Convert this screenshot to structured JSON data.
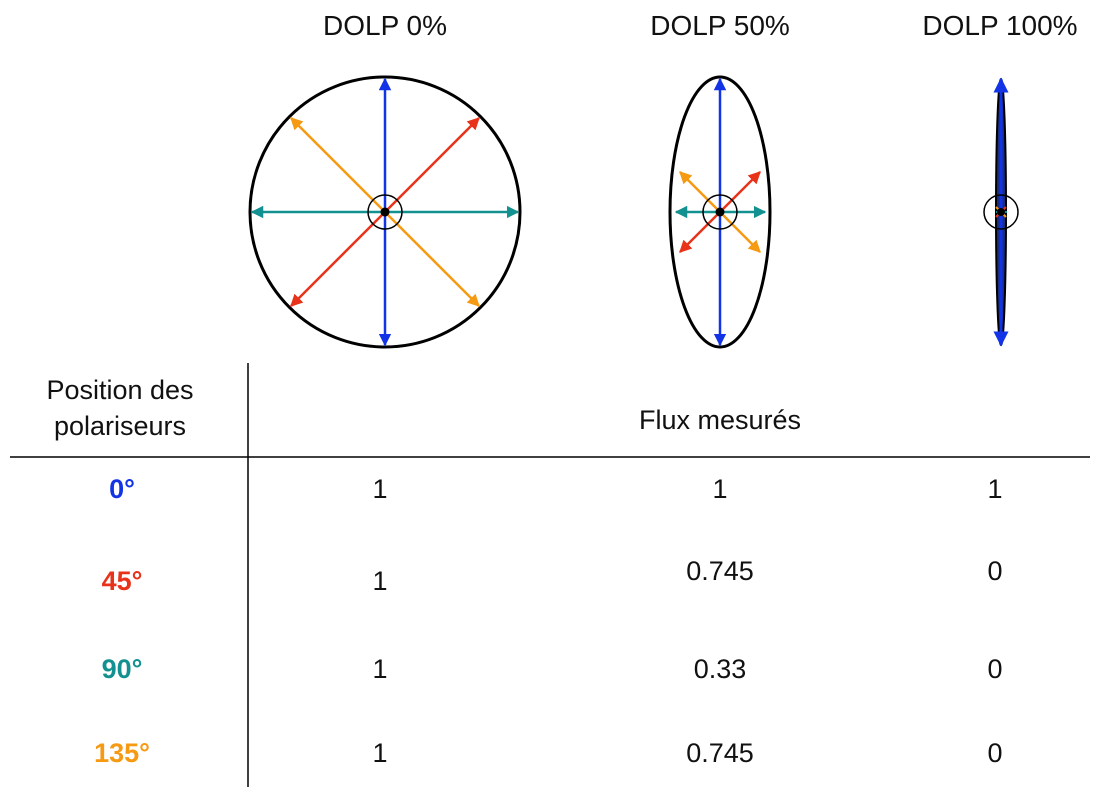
{
  "columns": {
    "dolp0": "DOLP 0%",
    "dolp50": "DOLP 50%",
    "dolp100": "DOLP 100%"
  },
  "table": {
    "header_left_line1": "Position des",
    "header_left_line2": "polariseurs",
    "header_right": "Flux mesurés",
    "rows": [
      {
        "angle": "0°",
        "color": "#1233e6",
        "values": [
          "1",
          "1",
          "1"
        ]
      },
      {
        "angle": "45°",
        "color": "#e8331a",
        "values": [
          "1",
          "0.745",
          "0"
        ]
      },
      {
        "angle": "90°",
        "color": "#139090",
        "values": [
          "1",
          "0.33",
          "0"
        ]
      },
      {
        "angle": "135°",
        "color": "#f59a12",
        "values": [
          "1",
          "0.745",
          "0"
        ]
      }
    ]
  },
  "colors": {
    "blue": "#1233e6",
    "red": "#e8331a",
    "teal": "#139090",
    "orange": "#f59a12",
    "outline": "#000000",
    "ellipse_fill_100": "#1a2f80"
  }
}
